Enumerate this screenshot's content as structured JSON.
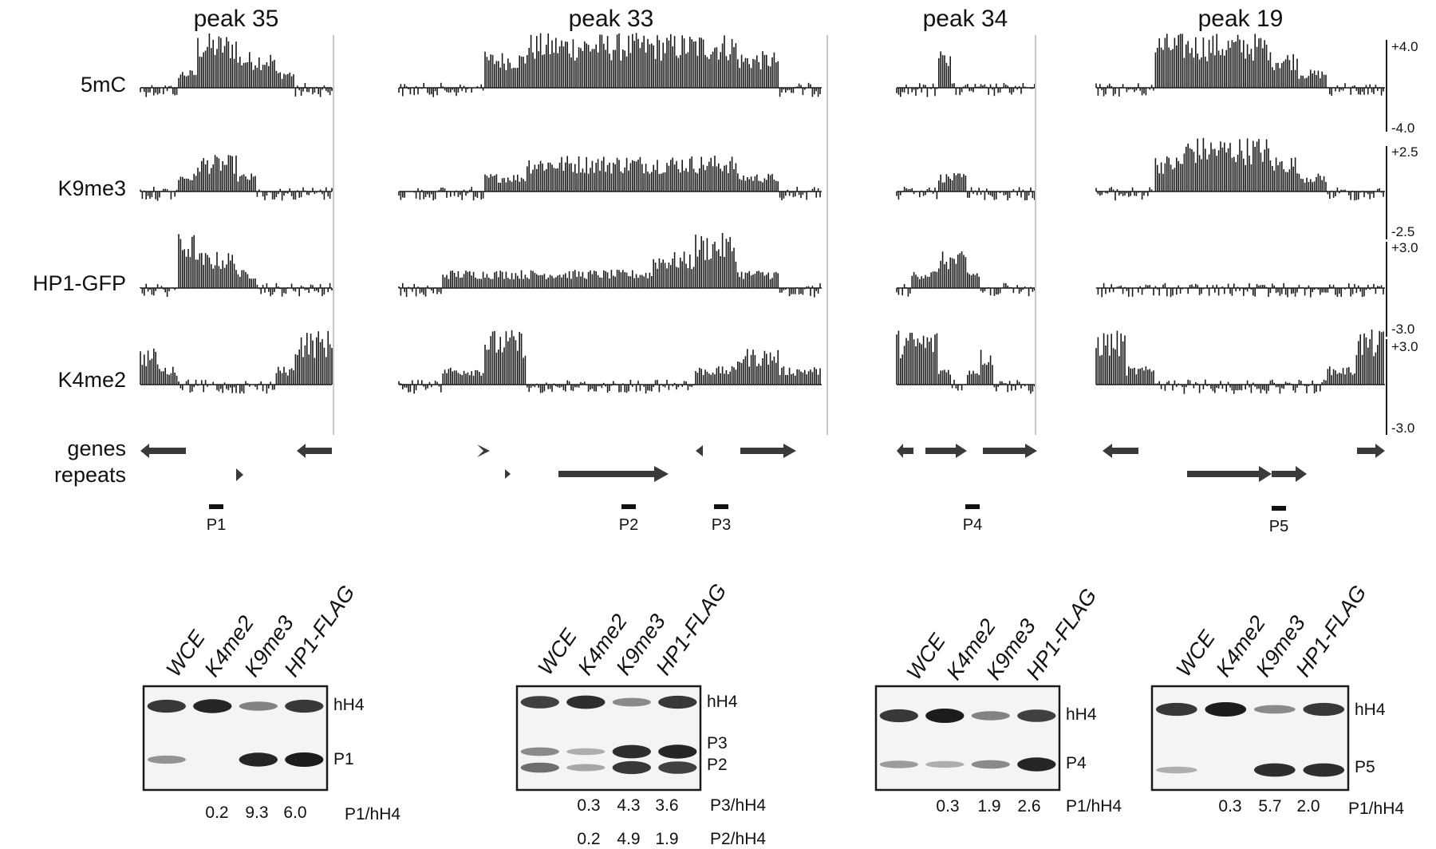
{
  "colors": {
    "ink": "#1a1a1a",
    "gel_bg": "#f4f4f4",
    "panel_sep": "#c8c8c8",
    "band": "#1c1c1c"
  },
  "tracks": [
    "5mC",
    "K9me3",
    "HP1-GFP",
    "K4me2"
  ],
  "feature_labels": [
    "genes",
    "repeats"
  ],
  "scales": [
    {
      "top": "+4.0",
      "bottom": "-4.0"
    },
    {
      "top": "+2.5",
      "bottom": "-2.5"
    },
    {
      "top": "+3.0",
      "bottom": "-3.0"
    },
    {
      "top": "+3.0",
      "bottom": "-3.0"
    }
  ],
  "panels": [
    {
      "title": "peak 35",
      "probes": [
        "P1"
      ],
      "lanes": [
        "WCE",
        "K4me2",
        "K9me3",
        "HP1-FLAG"
      ],
      "bands": [
        "hH4",
        "P1"
      ],
      "ratios": [
        {
          "values": [
            "0.2",
            "9.3",
            "6.0"
          ],
          "label": "P1/hH4"
        }
      ]
    },
    {
      "title": "peak 33",
      "probes": [
        "P2",
        "P3"
      ],
      "lanes": [
        "WCE",
        "K4me2",
        "K9me3",
        "HP1-FLAG"
      ],
      "bands": [
        "hH4",
        "P3",
        "P2"
      ],
      "ratios": [
        {
          "values": [
            "0.3",
            "4.3",
            "3.6"
          ],
          "label": "P3/hH4"
        },
        {
          "values": [
            "0.2",
            "4.9",
            "1.9"
          ],
          "label": "P2/hH4"
        }
      ]
    },
    {
      "title": "peak 34",
      "probes": [
        "P4"
      ],
      "lanes": [
        "WCE",
        "K4me2",
        "K9me3",
        "HP1-FLAG"
      ],
      "bands": [
        "hH4",
        "P4"
      ],
      "ratios": [
        {
          "values": [
            "0.3",
            "1.9",
            "2.6"
          ],
          "label": "P1/hH4"
        }
      ]
    },
    {
      "title": "peak 19",
      "probes": [
        "P5"
      ],
      "lanes": [
        "WCE",
        "K4me2",
        "K9me3",
        "HP1-FLAG"
      ],
      "bands": [
        "hH4",
        "P5"
      ],
      "ratios": [
        {
          "values": [
            "0.3",
            "5.7",
            "2.0"
          ],
          "label": "P1/hH4"
        }
      ]
    }
  ],
  "signal_profiles": {
    "5mC": [
      [
        0,
        0,
        1,
        3,
        3,
        2,
        2,
        1,
        0,
        0
      ],
      [
        0,
        0,
        2,
        3,
        3,
        3,
        3,
        3,
        2,
        0
      ],
      [
        0,
        0,
        0,
        2,
        0,
        0,
        0,
        0,
        0,
        0
      ],
      [
        0,
        0,
        3,
        3,
        3,
        3,
        2,
        1,
        0,
        0
      ]
    ],
    "K9me3": [
      [
        0,
        0,
        1,
        2,
        2,
        1,
        0,
        0,
        0,
        0
      ],
      [
        0,
        0,
        1,
        2,
        2,
        2,
        2,
        2,
        1,
        0
      ],
      [
        0,
        0,
        0,
        1,
        1,
        0,
        0,
        0,
        0,
        0
      ],
      [
        0,
        0,
        2,
        3,
        3,
        3,
        2,
        1,
        0,
        0
      ]
    ],
    "HP1-GFP": [
      [
        0,
        0,
        3,
        2,
        2,
        1,
        0,
        0,
        0,
        0
      ],
      [
        0,
        1,
        1,
        1,
        1,
        1,
        2,
        3,
        1,
        0
      ],
      [
        0,
        1,
        1,
        2,
        2,
        1,
        0,
        0,
        0,
        0
      ],
      [
        0,
        0,
        0,
        0,
        0,
        0,
        0,
        0,
        0,
        0
      ]
    ],
    "K4me2": [
      [
        2,
        1,
        0,
        0,
        0,
        0,
        0,
        1,
        3,
        3
      ],
      [
        0,
        1,
        3,
        0,
        0,
        0,
        0,
        1,
        2,
        1
      ],
      [
        3,
        3,
        3,
        1,
        0,
        1,
        2,
        0,
        0,
        0
      ],
      [
        3,
        1,
        0,
        0,
        0,
        0,
        0,
        0,
        1,
        3
      ]
    ]
  },
  "blot_intensity": [
    {
      "hH4": [
        0.85,
        0.95,
        0.45,
        0.85
      ],
      "probe1": [
        0.35,
        0.0,
        0.95,
        1.0
      ]
    },
    {
      "hH4": [
        0.8,
        0.9,
        0.4,
        0.85
      ],
      "probe1": [
        0.4,
        0.2,
        0.9,
        0.95
      ],
      "probe2": [
        0.55,
        0.25,
        0.85,
        0.8
      ]
    },
    {
      "hH4": [
        0.85,
        1.0,
        0.45,
        0.8
      ],
      "probe1": [
        0.3,
        0.2,
        0.4,
        0.95
      ]
    },
    {
      "hH4": [
        0.85,
        1.0,
        0.4,
        0.85
      ],
      "probe1": [
        0.2,
        0.0,
        0.9,
        0.9
      ]
    }
  ]
}
